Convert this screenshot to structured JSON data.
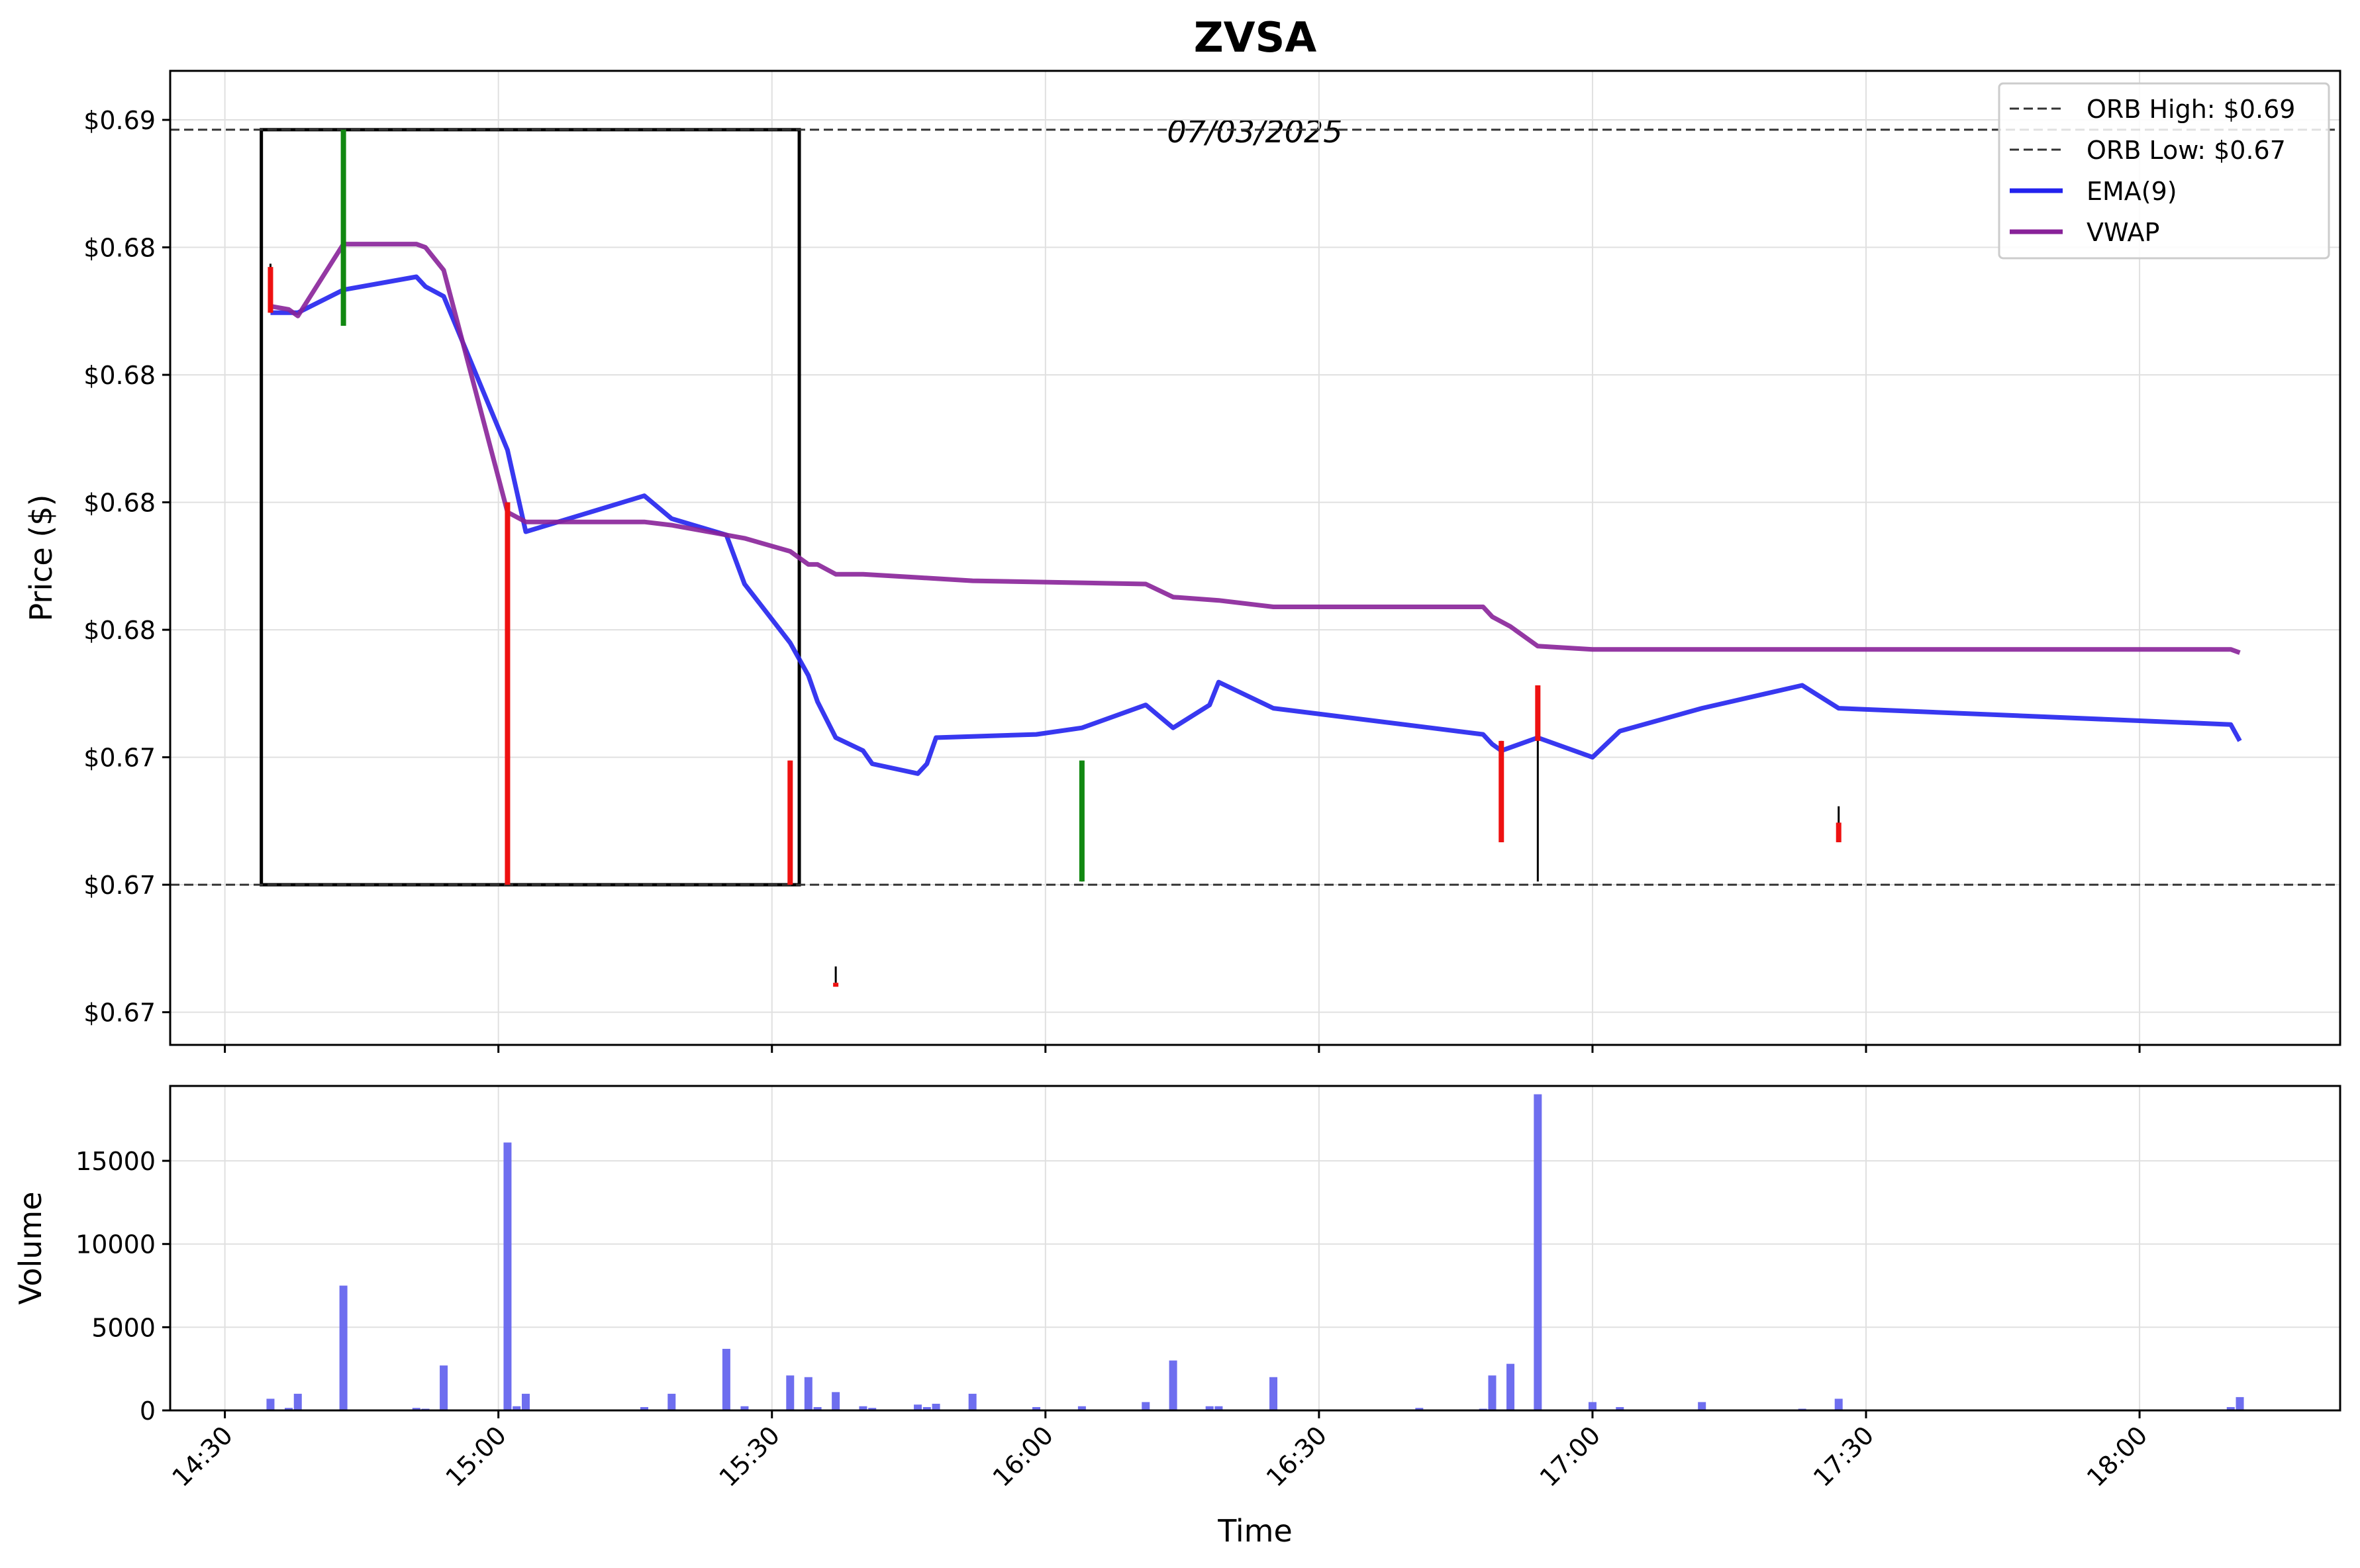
{
  "chart_data": {
    "type": "candlestick",
    "title": "ZVSA",
    "date_label": "07/03/2025",
    "price_panel": {
      "ylabel": "Price ($)",
      "ylim": [
        0.664,
        0.6938
      ],
      "yticks": [
        {
          "value": 0.665,
          "label": "$0.67"
        },
        {
          "value": 0.6689,
          "label": "$0.67"
        },
        {
          "value": 0.6728,
          "label": "$0.67"
        },
        {
          "value": 0.6767,
          "label": "$0.68"
        },
        {
          "value": 0.6806,
          "label": "$0.68"
        },
        {
          "value": 0.6845,
          "label": "$0.68"
        },
        {
          "value": 0.6884,
          "label": "$0.68"
        },
        {
          "value": 0.6923,
          "label": "$0.69"
        }
      ],
      "orb_high": 0.692,
      "orb_low": 0.6689,
      "orb_box": {
        "x_start": "14:34",
        "x_end": "15:33"
      },
      "candles": [
        {
          "t": "14:35",
          "open": 0.6878,
          "close": 0.6864,
          "high": 0.6879,
          "low": 0.6864,
          "dir": "down"
        },
        {
          "t": "14:43",
          "open": 0.686,
          "close": 0.692,
          "high": 0.692,
          "low": 0.686,
          "dir": "up"
        },
        {
          "t": "15:01",
          "open": 0.6806,
          "close": 0.6689,
          "high": 0.6806,
          "low": 0.6689,
          "dir": "down"
        },
        {
          "t": "15:32",
          "open": 0.6727,
          "close": 0.6689,
          "high": 0.6727,
          "low": 0.6689,
          "dir": "down"
        },
        {
          "t": "15:37",
          "open": 0.6659,
          "close": 0.6659,
          "high": 0.6664,
          "low": 0.6659,
          "dir": "down"
        },
        {
          "t": "16:04",
          "open": 0.669,
          "close": 0.6727,
          "high": 0.6727,
          "low": 0.669,
          "dir": "up"
        },
        {
          "t": "16:50",
          "open": 0.6733,
          "close": 0.6702,
          "high": 0.6733,
          "low": 0.6702,
          "dir": "down"
        },
        {
          "t": "16:54",
          "open": 0.675,
          "close": 0.6733,
          "high": 0.675,
          "low": 0.669,
          "dir": "down"
        },
        {
          "t": "17:27",
          "open": 0.6708,
          "close": 0.6702,
          "high": 0.6713,
          "low": 0.6702,
          "dir": "down"
        }
      ],
      "series": [
        {
          "name": "EMA(9)",
          "color": "#2222ee",
          "points": [
            [
              "14:35",
              0.6864
            ],
            [
              "14:38",
              0.6864
            ],
            [
              "14:43",
              0.6871
            ],
            [
              "14:51",
              0.6875
            ],
            [
              "14:52",
              0.6872
            ],
            [
              "14:54",
              0.6869
            ],
            [
              "15:01",
              0.6822
            ],
            [
              "15:03",
              0.6797
            ],
            [
              "15:16",
              0.6808
            ],
            [
              "15:19",
              0.6801
            ],
            [
              "15:25",
              0.6796
            ],
            [
              "15:27",
              0.6781
            ],
            [
              "15:32",
              0.6763
            ],
            [
              "15:34",
              0.6753
            ],
            [
              "15:35",
              0.6745
            ],
            [
              "15:37",
              0.6734
            ],
            [
              "15:40",
              0.673
            ],
            [
              "15:41",
              0.6726
            ],
            [
              "15:46",
              0.6723
            ],
            [
              "15:47",
              0.6726
            ],
            [
              "15:48",
              0.6734
            ],
            [
              "15:59",
              0.6735
            ],
            [
              "16:04",
              0.6737
            ],
            [
              "16:11",
              0.6744
            ],
            [
              "16:14",
              0.6737
            ],
            [
              "16:18",
              0.6744
            ],
            [
              "16:19",
              0.6751
            ],
            [
              "16:25",
              0.6743
            ],
            [
              "16:48",
              0.6735
            ],
            [
              "16:49",
              0.6732
            ],
            [
              "16:50",
              0.673
            ],
            [
              "16:54",
              0.6734
            ],
            [
              "17:00",
              0.6728
            ],
            [
              "17:03",
              0.6736
            ],
            [
              "17:12",
              0.6743
            ],
            [
              "17:23",
              0.675
            ],
            [
              "17:27",
              0.6743
            ],
            [
              "18:10",
              0.6738
            ],
            [
              "18:11",
              0.6733
            ]
          ]
        },
        {
          "name": "VWAP",
          "color": "#882299",
          "points": [
            [
              "14:35",
              0.6866
            ],
            [
              "14:37",
              0.6865
            ],
            [
              "14:38",
              0.6863
            ],
            [
              "14:43",
              0.6885
            ],
            [
              "14:51",
              0.6885
            ],
            [
              "14:52",
              0.6884
            ],
            [
              "14:54",
              0.6877
            ],
            [
              "15:01",
              0.6803
            ],
            [
              "15:03",
              0.68
            ],
            [
              "15:16",
              0.68
            ],
            [
              "15:19",
              0.6799
            ],
            [
              "15:25",
              0.6796
            ],
            [
              "15:27",
              0.6795
            ],
            [
              "15:32",
              0.6791
            ],
            [
              "15:34",
              0.6787
            ],
            [
              "15:35",
              0.6787
            ],
            [
              "15:37",
              0.6784
            ],
            [
              "15:40",
              0.6784
            ],
            [
              "15:46",
              0.6783
            ],
            [
              "15:52",
              0.6782
            ],
            [
              "16:11",
              0.6781
            ],
            [
              "16:14",
              0.6777
            ],
            [
              "16:19",
              0.6776
            ],
            [
              "16:25",
              0.6774
            ],
            [
              "16:48",
              0.6774
            ],
            [
              "16:49",
              0.6771
            ],
            [
              "16:51",
              0.6768
            ],
            [
              "16:54",
              0.6762
            ],
            [
              "17:00",
              0.6761
            ],
            [
              "17:23",
              0.6761
            ],
            [
              "17:27",
              0.6761
            ],
            [
              "18:10",
              0.6761
            ],
            [
              "18:11",
              0.676
            ]
          ]
        }
      ]
    },
    "volume_panel": {
      "ylabel": "Volume",
      "ylim": [
        0,
        19500
      ],
      "yticks": [
        0,
        5000,
        10000,
        15000
      ],
      "color": "#6666ee",
      "bars": [
        [
          "14:35",
          700
        ],
        [
          "14:37",
          150
        ],
        [
          "14:38",
          1000
        ],
        [
          "14:43",
          7500
        ],
        [
          "14:51",
          150
        ],
        [
          "14:52",
          100
        ],
        [
          "14:54",
          2700
        ],
        [
          "15:01",
          16100
        ],
        [
          "15:02",
          250
        ],
        [
          "15:03",
          1000
        ],
        [
          "15:16",
          200
        ],
        [
          "15:19",
          1000
        ],
        [
          "15:25",
          3700
        ],
        [
          "15:27",
          250
        ],
        [
          "15:32",
          2100
        ],
        [
          "15:34",
          2000
        ],
        [
          "15:35",
          200
        ],
        [
          "15:37",
          1100
        ],
        [
          "15:40",
          250
        ],
        [
          "15:41",
          150
        ],
        [
          "15:46",
          350
        ],
        [
          "15:47",
          200
        ],
        [
          "15:48",
          400
        ],
        [
          "15:52",
          1000
        ],
        [
          "15:59",
          200
        ],
        [
          "16:04",
          250
        ],
        [
          "16:11",
          500
        ],
        [
          "16:14",
          3000
        ],
        [
          "16:18",
          250
        ],
        [
          "16:19",
          250
        ],
        [
          "16:25",
          2000
        ],
        [
          "16:41",
          150
        ],
        [
          "16:48",
          100
        ],
        [
          "16:49",
          2100
        ],
        [
          "16:51",
          2800
        ],
        [
          "16:54",
          19000
        ],
        [
          "17:00",
          500
        ],
        [
          "17:03",
          200
        ],
        [
          "17:12",
          500
        ],
        [
          "17:23",
          100
        ],
        [
          "17:27",
          700
        ],
        [
          "18:10",
          200
        ],
        [
          "18:11",
          800
        ]
      ]
    },
    "x_axis": {
      "label": "Time",
      "xlim": [
        "14:24",
        "18:22"
      ],
      "ticks": [
        "14:30",
        "15:00",
        "15:30",
        "16:00",
        "16:30",
        "17:00",
        "17:30",
        "18:00"
      ]
    },
    "legend": {
      "placement": "top-right",
      "entries": [
        {
          "label": "ORB High: $0.69",
          "style": "dashed",
          "color": "#333333"
        },
        {
          "label": "ORB Low: $0.67",
          "style": "dashed",
          "color": "#333333"
        },
        {
          "label": "EMA(9)",
          "style": "solid",
          "color": "#2222ee"
        },
        {
          "label": "VWAP",
          "style": "solid",
          "color": "#882299"
        }
      ]
    },
    "colors": {
      "up": "#118811",
      "down": "#ee1111",
      "grid": "#e0e0e0"
    },
    "grid": true
  }
}
